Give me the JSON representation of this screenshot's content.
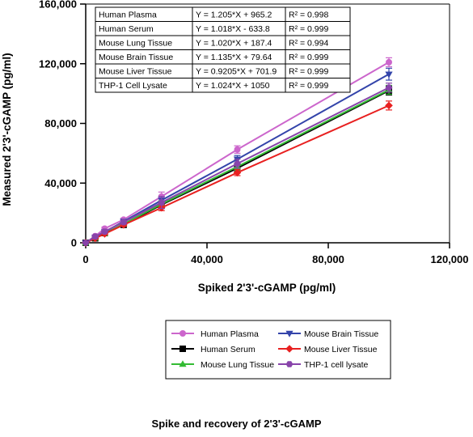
{
  "chart_data": {
    "type": "line",
    "xlabel": "Spiked 2'3'-cGAMP (pg/ml)",
    "ylabel": "Measured 2'3'-cGAMP (pg/ml)",
    "xlim": [
      0,
      120000
    ],
    "ylim": [
      0,
      160000
    ],
    "x_ticks": [
      0,
      40000,
      80000,
      120000
    ],
    "y_ticks": [
      0,
      40000,
      80000,
      120000,
      160000
    ],
    "x_tick_labels": [
      "0",
      "40,000",
      "80,000",
      "120,000"
    ],
    "y_tick_labels": [
      "0",
      "40,000",
      "80,000",
      "120,000",
      "160,000"
    ],
    "x": [
      0,
      3125,
      6250,
      12500,
      25000,
      50000,
      100000
    ],
    "series": [
      {
        "name": "Human Plasma",
        "color": "#cc66cc",
        "marker": "circle",
        "values": [
          0,
          4500,
          9500,
          15500,
          31000,
          62500,
          121000
        ],
        "errors": [
          0,
          800,
          1000,
          1000,
          3000,
          2500,
          3000
        ]
      },
      {
        "name": "Human Serum",
        "color": "#000000",
        "marker": "square",
        "values": [
          0,
          3000,
          6500,
          12000,
          25500,
          50000,
          102000
        ],
        "errors": [
          0,
          600,
          800,
          1000,
          2500,
          2500,
          3000
        ]
      },
      {
        "name": "Mouse Lung Tissue",
        "color": "#33bb33",
        "marker": "triangle-up",
        "values": [
          0,
          3200,
          6300,
          12500,
          26000,
          51000,
          102500
        ],
        "errors": [
          0,
          600,
          800,
          1000,
          2000,
          2500,
          3000
        ]
      },
      {
        "name": "Mouse Brain Tissue",
        "color": "#3344aa",
        "marker": "triangle-down",
        "values": [
          0,
          3600,
          7300,
          14300,
          28500,
          56000,
          113000
        ],
        "errors": [
          0,
          600,
          800,
          1000,
          2500,
          2500,
          4000
        ]
      },
      {
        "name": "Mouse Liver Tissue",
        "color": "#e82020",
        "marker": "diamond",
        "values": [
          0,
          3000,
          6000,
          12000,
          23500,
          47000,
          92000
        ],
        "errors": [
          0,
          500,
          700,
          1000,
          2000,
          2000,
          3000
        ]
      },
      {
        "name": "THP-1 cell lysate",
        "color": "#8844aa",
        "marker": "hexagon",
        "values": [
          0,
          4200,
          7500,
          13800,
          27000,
          53000,
          104000
        ],
        "errors": [
          0,
          800,
          1000,
          1200,
          4000,
          3000,
          3000
        ]
      }
    ],
    "fits": [
      {
        "sample": "Human Plasma",
        "equation": "Y = 1.205*X + 965.2",
        "r2": "R² = 0.998"
      },
      {
        "sample": "Human Serum",
        "equation": "Y = 1.018*X - 633.8",
        "r2": "R² = 0.999"
      },
      {
        "sample": "Mouse Lung Tissue",
        "equation": "Y = 1.020*X + 187.4",
        "r2": "R² = 0.994"
      },
      {
        "sample": "Mouse Brain Tissue",
        "equation": "Y = 1.135*X + 79.64",
        "r2": "R² = 0.999"
      },
      {
        "sample": "Mouse Liver Tissue",
        "equation": "Y = 0.9205*X + 701.9",
        "r2": "R² = 0.999"
      },
      {
        "sample": "THP-1 Cell Lysate",
        "equation": "Y = 1.024*X + 1050",
        "r2": "R² = 0.999"
      }
    ],
    "legend_position": "bottom-center",
    "grid": false
  },
  "caption": "Spike and recovery of 2'3'-cGAMP"
}
